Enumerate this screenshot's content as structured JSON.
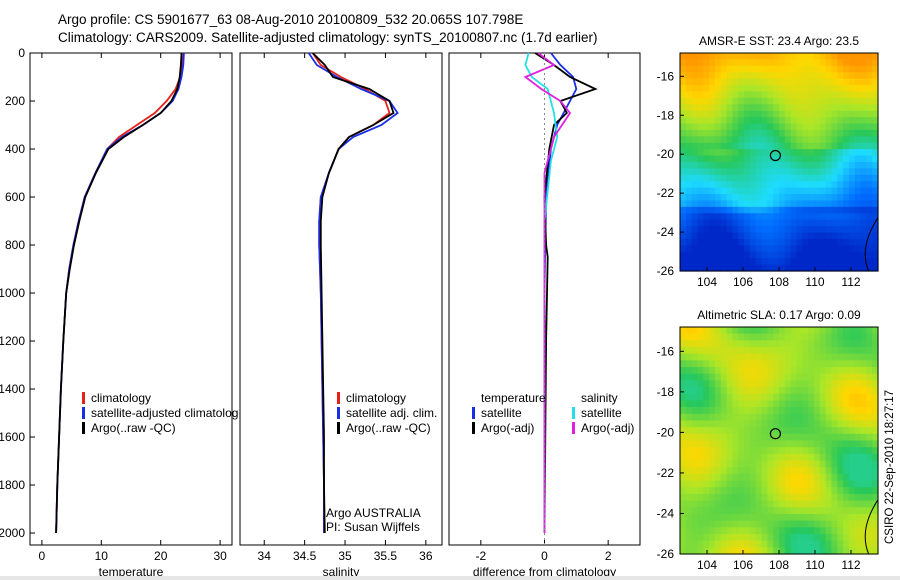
{
  "header": {
    "line1": "Argo profile: CS 5901677_63 08-Aug-2010 20100809_532 20.065S 107.798E",
    "line2": "Climatology: CARS2009. Satellite-adjusted climatology: synTS_20100807.nc (1.7d earlier)"
  },
  "colors": {
    "climatology": "#e8201a",
    "satellite": "#1a2ee8",
    "argo": "#000000",
    "satellite_salinity": "#22e0e6",
    "argo_salinity": "#e020e0"
  },
  "chart_data": [
    {
      "type": "line",
      "name": "temperature-profile",
      "xlabel": "temperature",
      "ylabel": "",
      "xlim": [
        -2,
        32
      ],
      "ylim": [
        2050,
        0
      ],
      "xticks": [
        0,
        10,
        20,
        30
      ],
      "yticks": [
        0,
        200,
        400,
        600,
        800,
        1000,
        1200,
        1400,
        1600,
        1800,
        2000
      ],
      "legend": [
        "climatology",
        "satellite-adjusted climatolog",
        "Argo(..raw -QC)"
      ],
      "series": [
        {
          "name": "climatology",
          "x": [
            23.8,
            23.6,
            23.3,
            22.5,
            21,
            19,
            16,
            13,
            11,
            9,
            7.2,
            6.2,
            5.3,
            4.6,
            4.1,
            3.6,
            3.2,
            2.9,
            2.6,
            2.4
          ],
          "y": [
            0,
            50,
            100,
            150,
            200,
            250,
            300,
            350,
            400,
            500,
            600,
            700,
            800,
            900,
            1000,
            1200,
            1400,
            1600,
            1800,
            2000
          ]
        },
        {
          "name": "satellite-adjusted climatolog",
          "x": [
            23.9,
            23.8,
            23.5,
            23,
            22,
            20,
            17,
            13.5,
            11,
            9,
            7.2,
            6.2,
            5.3,
            4.6,
            4.1,
            3.6,
            3.2,
            2.9,
            2.6,
            2.4
          ],
          "y": [
            0,
            50,
            100,
            150,
            200,
            250,
            300,
            350,
            400,
            500,
            600,
            700,
            800,
            900,
            1000,
            1200,
            1400,
            1600,
            1800,
            2000
          ]
        },
        {
          "name": "Argo(..raw -QC)",
          "x": [
            23.5,
            23.4,
            23.2,
            22.8,
            21.8,
            20,
            17,
            13.8,
            11.2,
            9.1,
            7.3,
            6.3,
            5.4,
            4.7,
            4.1,
            3.6,
            3.2,
            2.9,
            2.6,
            2.4
          ],
          "y": [
            0,
            50,
            100,
            150,
            200,
            250,
            300,
            350,
            400,
            500,
            600,
            700,
            800,
            900,
            1000,
            1200,
            1400,
            1600,
            1800,
            2000
          ]
        }
      ]
    },
    {
      "type": "line",
      "name": "salinity-profile",
      "xlabel": "salinity",
      "xlim": [
        33.7,
        36.2
      ],
      "ylim": [
        2050,
        0
      ],
      "xticks": [
        34,
        34.5,
        35,
        35.5,
        36
      ],
      "legend": [
        "climatology",
        "satellite adj. clim.",
        "Argo(..raw -QC)"
      ],
      "annotation": [
        "Argo AUSTRALIA",
        "PI: Susan Wijffels"
      ],
      "series": [
        {
          "name": "climatology",
          "x": [
            34.6,
            34.7,
            34.95,
            35.25,
            35.5,
            35.55,
            35.35,
            35.05,
            34.92,
            34.8,
            34.7,
            34.68,
            34.68,
            34.7,
            34.71,
            34.72,
            34.73,
            34.74,
            34.74
          ],
          "y": [
            0,
            50,
            100,
            150,
            200,
            250,
            300,
            350,
            400,
            500,
            600,
            700,
            800,
            1000,
            1200,
            1400,
            1600,
            1800,
            2000
          ]
        },
        {
          "name": "satellite adj. clim.",
          "x": [
            34.55,
            34.65,
            34.9,
            35.2,
            35.55,
            35.65,
            35.45,
            35.1,
            34.92,
            34.8,
            34.7,
            34.68,
            34.68,
            34.7,
            34.71,
            34.72,
            34.73,
            34.74,
            34.74
          ],
          "y": [
            0,
            50,
            100,
            150,
            200,
            250,
            300,
            350,
            400,
            500,
            600,
            700,
            800,
            1000,
            1200,
            1400,
            1600,
            1800,
            2000
          ]
        },
        {
          "name": "Argo(..raw -QC)",
          "x": [
            34.6,
            34.75,
            34.85,
            35.3,
            35.55,
            35.6,
            35.35,
            35.05,
            34.92,
            34.8,
            34.72,
            34.7,
            34.7,
            34.71,
            34.72,
            34.73,
            34.74,
            34.74,
            34.75
          ],
          "y": [
            0,
            50,
            100,
            150,
            200,
            250,
            300,
            350,
            400,
            500,
            600,
            700,
            800,
            1000,
            1200,
            1400,
            1600,
            1800,
            2000
          ]
        }
      ]
    },
    {
      "type": "line",
      "name": "difference-profile",
      "xlabel": "difference from climatology",
      "xlim": [
        -3,
        3
      ],
      "ylim": [
        2050,
        0
      ],
      "xticks": [
        -2,
        0,
        2
      ],
      "legend_temperature": [
        "temperature",
        "satellite",
        "Argo(-adj)"
      ],
      "legend_salinity": [
        "salinity",
        "satellite",
        "Argo(-adj)"
      ],
      "series": [
        {
          "name": "temperature satellite",
          "x": [
            0.2,
            0.5,
            0.9,
            1.0,
            0.8,
            0.6,
            0.4,
            0.2,
            0.05,
            0.0,
            0.0,
            0.0
          ],
          "y": [
            0,
            50,
            100,
            150,
            200,
            250,
            300,
            400,
            600,
            1000,
            1500,
            2000
          ]
        },
        {
          "name": "temperature Argo(-adj)",
          "x": [
            -0.3,
            0.3,
            0.8,
            1.6,
            0.5,
            0.7,
            0.3,
            0.15,
            0.0,
            0.05,
            0.1,
            0.05,
            0.0
          ],
          "y": [
            0,
            50,
            100,
            150,
            200,
            250,
            300,
            400,
            600,
            800,
            850,
            1200,
            2000
          ]
        },
        {
          "name": "salinity satellite",
          "x": [
            -0.5,
            -0.6,
            -0.4,
            0.1,
            0.3,
            0.4,
            0.2,
            0.0,
            0.0,
            0.0
          ],
          "y": [
            0,
            50,
            100,
            150,
            250,
            350,
            450,
            700,
            1200,
            2000
          ]
        },
        {
          "name": "salinity Argo(-adj)",
          "x": [
            -0.2,
            0.3,
            -0.6,
            -0.1,
            0.5,
            0.8,
            0.3,
            0.0,
            0.0
          ],
          "y": [
            0,
            50,
            100,
            150,
            200,
            250,
            350,
            500,
            2000
          ]
        }
      ]
    },
    {
      "type": "heatmap",
      "name": "sst-map",
      "title": "AMSR-E SST: 23.4  Argo: 23.5",
      "xlim": [
        102.5,
        113.5
      ],
      "ylim": [
        -26,
        -14.8
      ],
      "xticks": [
        104,
        106,
        108,
        110,
        112
      ],
      "yticks": [
        -16,
        -18,
        -20,
        -22,
        -24,
        -26
      ],
      "marker": {
        "lon": 107.8,
        "lat": -20.065
      }
    },
    {
      "type": "heatmap",
      "name": "sla-map",
      "title": "Altimetric SLA: 0.17  Argo: 0.09",
      "xlim": [
        102.5,
        113.5
      ],
      "ylim": [
        -26,
        -14.8
      ],
      "xticks": [
        104,
        106,
        108,
        110,
        112
      ],
      "yticks": [
        -16,
        -18,
        -20,
        -22,
        -24,
        -26
      ],
      "marker": {
        "lon": 107.8,
        "lat": -20.065
      }
    }
  ],
  "footer": {
    "stamp": "CSIRO 22-Sep-2010 18:27:17"
  }
}
